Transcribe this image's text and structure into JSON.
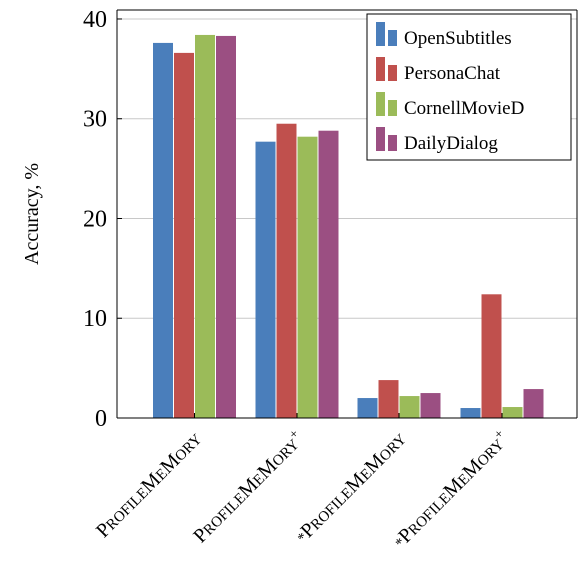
{
  "chart_data": {
    "type": "bar",
    "title": "",
    "xlabel": "",
    "ylabel": "Accuracy, %",
    "ylim": [
      0,
      40.9
    ],
    "yticks": [
      0,
      10,
      20,
      30,
      40
    ],
    "grid": true,
    "legend_position": "top-right",
    "categories": [
      "PROFILEMEMORY",
      "PROFILEMEMORY+",
      "*PROFILEMEMORY",
      "*PROFILEMEMORY+"
    ],
    "series": [
      {
        "name": "OpenSubtitles",
        "color": "#4a7ebb",
        "values": [
          37.6,
          27.7,
          2.0,
          1.0
        ]
      },
      {
        "name": "PersonaChat",
        "color": "#c0504d",
        "values": [
          36.6,
          29.5,
          3.8,
          12.4
        ]
      },
      {
        "name": "CornellMovieD",
        "color": "#9bbb59",
        "values": [
          38.4,
          28.2,
          2.2,
          1.1
        ]
      },
      {
        "name": "DailyDialog",
        "color": "#9b4f82",
        "values": [
          38.3,
          28.8,
          2.5,
          2.9
        ]
      }
    ]
  }
}
